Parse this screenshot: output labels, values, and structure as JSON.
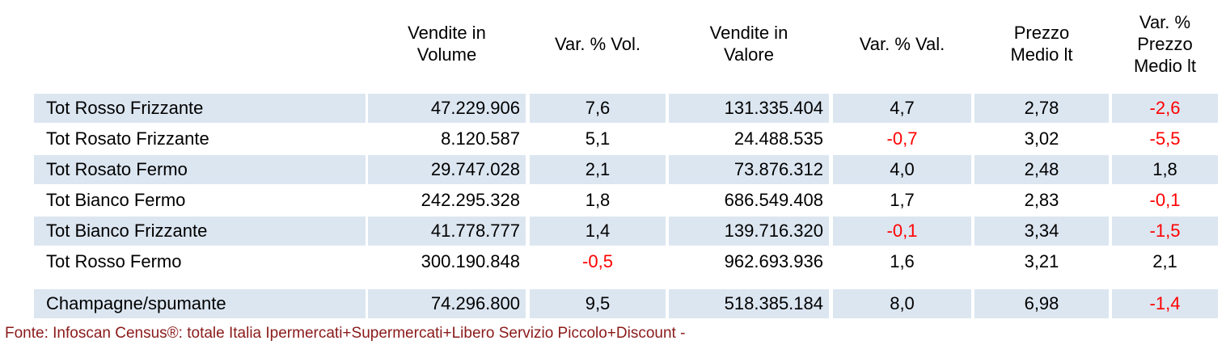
{
  "table": {
    "headers": [
      [],
      [
        "Vendite in",
        "Volume"
      ],
      [
        "Var. % Vol."
      ],
      [
        "Vendite in",
        "Valore"
      ],
      [
        "Var. % Val."
      ],
      [
        "Prezzo",
        "Medio lt"
      ],
      [
        "Var. %",
        "Prezzo",
        "Medio lt"
      ]
    ],
    "rows": [
      [
        "Tot Rosso Frizzante",
        "47.229.906",
        "7,6",
        "131.335.404",
        "4,7",
        "2,78",
        "-2,6"
      ],
      [
        "Tot Rosato Frizzante",
        "8.120.587",
        "5,1",
        "24.488.535",
        "-0,7",
        "3,02",
        "-5,5"
      ],
      [
        "Tot Rosato Fermo",
        "29.747.028",
        "2,1",
        "73.876.312",
        "4,0",
        "2,48",
        "1,8"
      ],
      [
        "Tot Bianco Fermo",
        "242.295.328",
        "1,8",
        "686.549.408",
        "1,7",
        "2,83",
        "-0,1"
      ],
      [
        "Tot Bianco Frizzante",
        "41.778.777",
        "1,4",
        "139.716.320",
        "-0,1",
        "3,34",
        "-1,5"
      ],
      [
        "Tot Rosso Fermo",
        "300.190.848",
        "-0,5",
        "962.693.936",
        "1,6",
        "3,21",
        "2,1"
      ],
      [
        "Champagne/spumante",
        "74.296.800",
        "9,5",
        "518.385.184",
        "8,0",
        "6,98",
        "-1,4"
      ]
    ]
  },
  "footnote": "Fonte: Infoscan Census®: totale Italia Ipermercati+Supermercati+Libero Servizio Piccolo+Discount -"
}
